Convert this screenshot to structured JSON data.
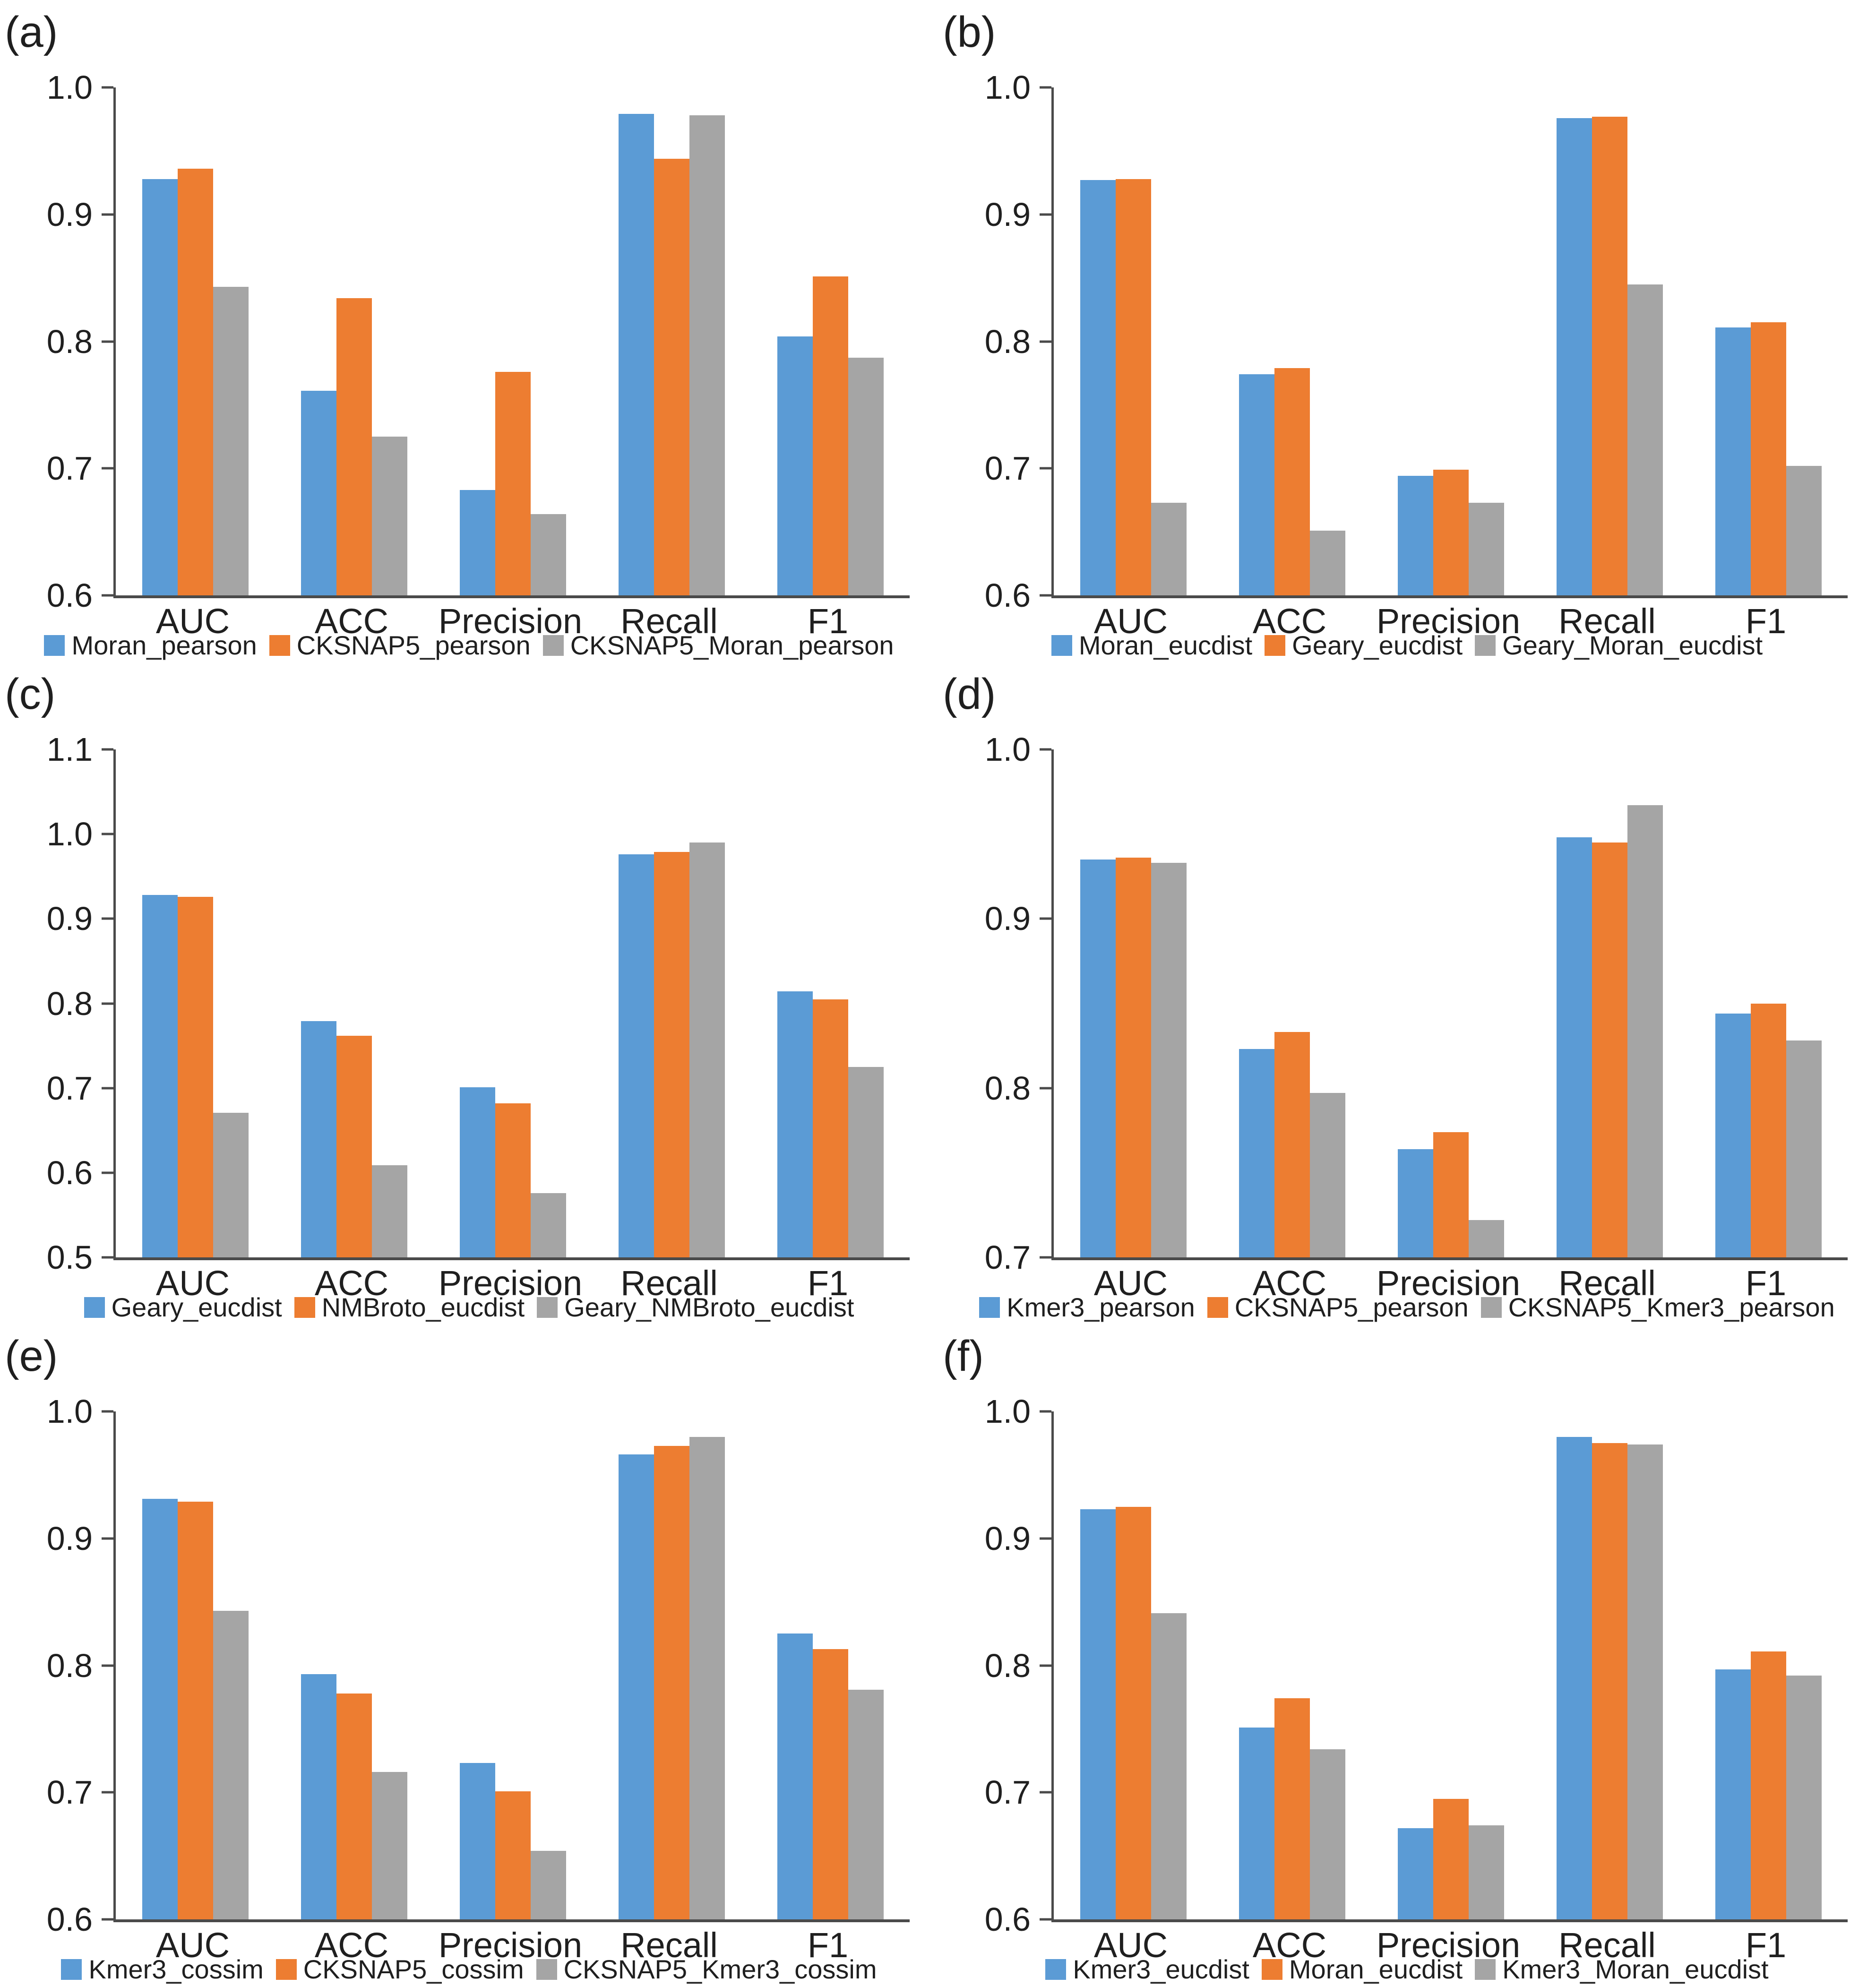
{
  "figure": {
    "background": "#ffffff",
    "panel_count": 6
  },
  "colors": {
    "series_blue": "#5B9BD5",
    "series_orange": "#ED7D31",
    "series_gray": "#A5A5A5",
    "axis": "#4a4a4a",
    "text": "#1f1f1f"
  },
  "chart_data": [
    {
      "panel_label": "(a)",
      "type": "bar",
      "categories": [
        "AUC",
        "ACC",
        "Precision",
        "Recall",
        "F1"
      ],
      "ylim": [
        0.6,
        1.0
      ],
      "yticks": [
        0.6,
        0.7,
        0.8,
        0.9,
        1.0
      ],
      "ytick_labels": [
        "0.6",
        "0.7",
        "0.8",
        "0.9",
        "1.0"
      ],
      "grid": false,
      "legend_position": "bottom",
      "series": [
        {
          "name": "Moran_pearson",
          "color": "#5B9BD5",
          "values": [
            0.928,
            0.761,
            0.683,
            0.979,
            0.804
          ]
        },
        {
          "name": "CKSNAP5_pearson",
          "color": "#ED7D31",
          "values": [
            0.936,
            0.834,
            0.776,
            0.944,
            0.851
          ]
        },
        {
          "name": "CKSNAP5_Moran_pearson",
          "color": "#A5A5A5",
          "values": [
            0.843,
            0.725,
            0.664,
            0.978,
            0.787
          ]
        }
      ]
    },
    {
      "panel_label": "(b)",
      "type": "bar",
      "categories": [
        "AUC",
        "ACC",
        "Precision",
        "Recall",
        "F1"
      ],
      "ylim": [
        0.6,
        1.0
      ],
      "yticks": [
        0.6,
        0.7,
        0.8,
        0.9,
        1.0
      ],
      "ytick_labels": [
        "0.6",
        "0.7",
        "0.8",
        "0.9",
        "1.0"
      ],
      "grid": false,
      "legend_position": "bottom",
      "series": [
        {
          "name": "Moran_eucdist",
          "color": "#5B9BD5",
          "values": [
            0.927,
            0.774,
            0.694,
            0.976,
            0.811
          ]
        },
        {
          "name": "Geary_eucdist",
          "color": "#ED7D31",
          "values": [
            0.928,
            0.779,
            0.699,
            0.977,
            0.815
          ]
        },
        {
          "name": "Geary_Moran_eucdist",
          "color": "#A5A5A5",
          "values": [
            0.673,
            0.651,
            0.673,
            0.845,
            0.702
          ]
        }
      ]
    },
    {
      "panel_label": "(c)",
      "type": "bar",
      "categories": [
        "AUC",
        "ACC",
        "Precision",
        "Recall",
        "F1"
      ],
      "ylim": [
        0.5,
        1.1
      ],
      "yticks": [
        0.5,
        0.6,
        0.7,
        0.8,
        0.9,
        1.0,
        1.1
      ],
      "ytick_labels": [
        "0.5",
        "0.6",
        "0.7",
        "0.8",
        "0.9",
        "1.0",
        "1.1"
      ],
      "grid": false,
      "legend_position": "bottom",
      "series": [
        {
          "name": "Geary_eucdist",
          "color": "#5B9BD5",
          "values": [
            0.928,
            0.779,
            0.701,
            0.976,
            0.814
          ]
        },
        {
          "name": "NMBroto_eucdist",
          "color": "#ED7D31",
          "values": [
            0.926,
            0.762,
            0.682,
            0.979,
            0.805
          ]
        },
        {
          "name": "Geary_NMBroto_eucdist",
          "color": "#A5A5A5",
          "values": [
            0.671,
            0.609,
            0.576,
            0.99,
            0.725
          ]
        }
      ]
    },
    {
      "panel_label": "(d)",
      "type": "bar",
      "categories": [
        "AUC",
        "ACC",
        "Precision",
        "Recall",
        "F1"
      ],
      "ylim": [
        0.7,
        1.0
      ],
      "yticks": [
        0.7,
        0.8,
        0.9,
        1.0
      ],
      "ytick_labels": [
        "0.7",
        "0.8",
        "0.9",
        "1.0"
      ],
      "grid": false,
      "legend_position": "bottom",
      "series": [
        {
          "name": "Kmer3_pearson",
          "color": "#5B9BD5",
          "values": [
            0.935,
            0.823,
            0.764,
            0.948,
            0.844
          ]
        },
        {
          "name": "CKSNAP5_pearson",
          "color": "#ED7D31",
          "values": [
            0.936,
            0.833,
            0.774,
            0.945,
            0.85
          ]
        },
        {
          "name": "CKSNAP5_Kmer3_pearson",
          "color": "#A5A5A5",
          "values": [
            0.933,
            0.797,
            0.722,
            0.967,
            0.828
          ]
        }
      ]
    },
    {
      "panel_label": "(e)",
      "type": "bar",
      "categories": [
        "AUC",
        "ACC",
        "Precision",
        "Recall",
        "F1"
      ],
      "ylim": [
        0.6,
        1.0
      ],
      "yticks": [
        0.6,
        0.7,
        0.8,
        0.9,
        1.0
      ],
      "ytick_labels": [
        "0.6",
        "0.7",
        "0.8",
        "0.9",
        "1.0"
      ],
      "grid": false,
      "legend_position": "bottom",
      "series": [
        {
          "name": "Kmer3_cossim",
          "color": "#5B9BD5",
          "values": [
            0.931,
            0.793,
            0.723,
            0.966,
            0.825
          ]
        },
        {
          "name": "CKSNAP5_cossim",
          "color": "#ED7D31",
          "values": [
            0.929,
            0.778,
            0.701,
            0.973,
            0.813
          ]
        },
        {
          "name": "CKSNAP5_Kmer3_cossim",
          "color": "#A5A5A5",
          "values": [
            0.843,
            0.716,
            0.654,
            0.98,
            0.781
          ]
        }
      ]
    },
    {
      "panel_label": "(f)",
      "type": "bar",
      "categories": [
        "AUC",
        "ACC",
        "Precision",
        "Recall",
        "F1"
      ],
      "ylim": [
        0.6,
        1.0
      ],
      "yticks": [
        0.6,
        0.7,
        0.8,
        0.9,
        1.0
      ],
      "ytick_labels": [
        "0.6",
        "0.7",
        "0.8",
        "0.9",
        "1.0"
      ],
      "grid": false,
      "legend_position": "bottom",
      "series": [
        {
          "name": "Kmer3_eucdist",
          "color": "#5B9BD5",
          "values": [
            0.923,
            0.751,
            0.672,
            0.98,
            0.797
          ]
        },
        {
          "name": "Moran_eucdist",
          "color": "#ED7D31",
          "values": [
            0.925,
            0.774,
            0.695,
            0.975,
            0.811
          ]
        },
        {
          "name": "Kmer3_Moran_eucdist",
          "color": "#A5A5A5",
          "values": [
            0.841,
            0.734,
            0.674,
            0.974,
            0.792
          ]
        }
      ]
    }
  ]
}
